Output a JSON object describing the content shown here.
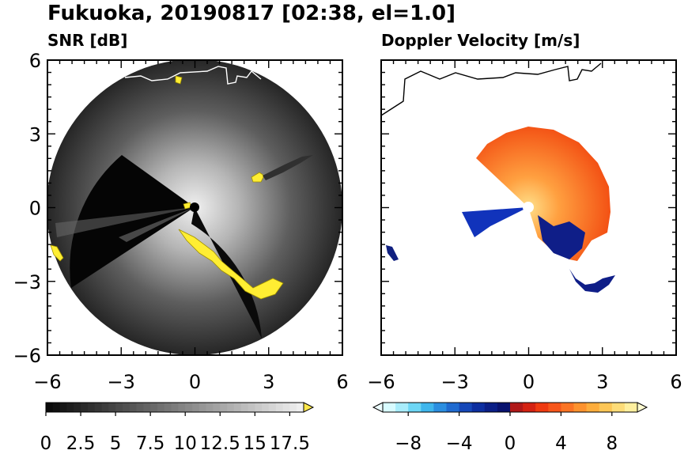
{
  "title": "Fukuoka, 20190817 [02:38, el=1.0]",
  "panels": [
    {
      "subtitle": "SNR [dB]"
    },
    {
      "subtitle": "Doppler Velocity [m/s]"
    }
  ],
  "colorbars": [
    {
      "labels": [
        "0",
        "2.5",
        "5",
        "7.5",
        "10",
        "12.5",
        "15",
        "17.5"
      ]
    },
    {
      "labels": [
        "−8",
        "−4",
        "0",
        "4",
        "8"
      ]
    }
  ],
  "chart_data": [
    {
      "type": "heatmap",
      "title": "SNR [dB]",
      "xlim": [
        -6,
        6
      ],
      "ylim": [
        -6,
        6
      ],
      "xticks": [
        "−6",
        "−3",
        "0",
        "3",
        "6"
      ],
      "yticks": [
        "6",
        "3",
        "0",
        "−3",
        "−6"
      ],
      "radar_range": 6,
      "colorbar": {
        "min": 0,
        "max": 18.5,
        "step": 0.5,
        "extend": "max",
        "ticks": [
          0,
          2.5,
          5,
          7.5,
          10,
          12.5,
          15,
          17.5
        ]
      }
    },
    {
      "type": "heatmap",
      "title": "Doppler Velocity [m/s]",
      "xlim": [
        -6,
        6
      ],
      "ylim": [
        -6,
        6
      ],
      "xticks": [
        "−6",
        "−3",
        "0",
        "3",
        "6"
      ],
      "yticks": [
        "6",
        "3",
        "0",
        "−3",
        "−6"
      ],
      "colorbar": {
        "min": -10,
        "max": 10,
        "step": 1,
        "extend": "both",
        "ticks": [
          -8,
          -4,
          0,
          4,
          8
        ]
      }
    }
  ]
}
